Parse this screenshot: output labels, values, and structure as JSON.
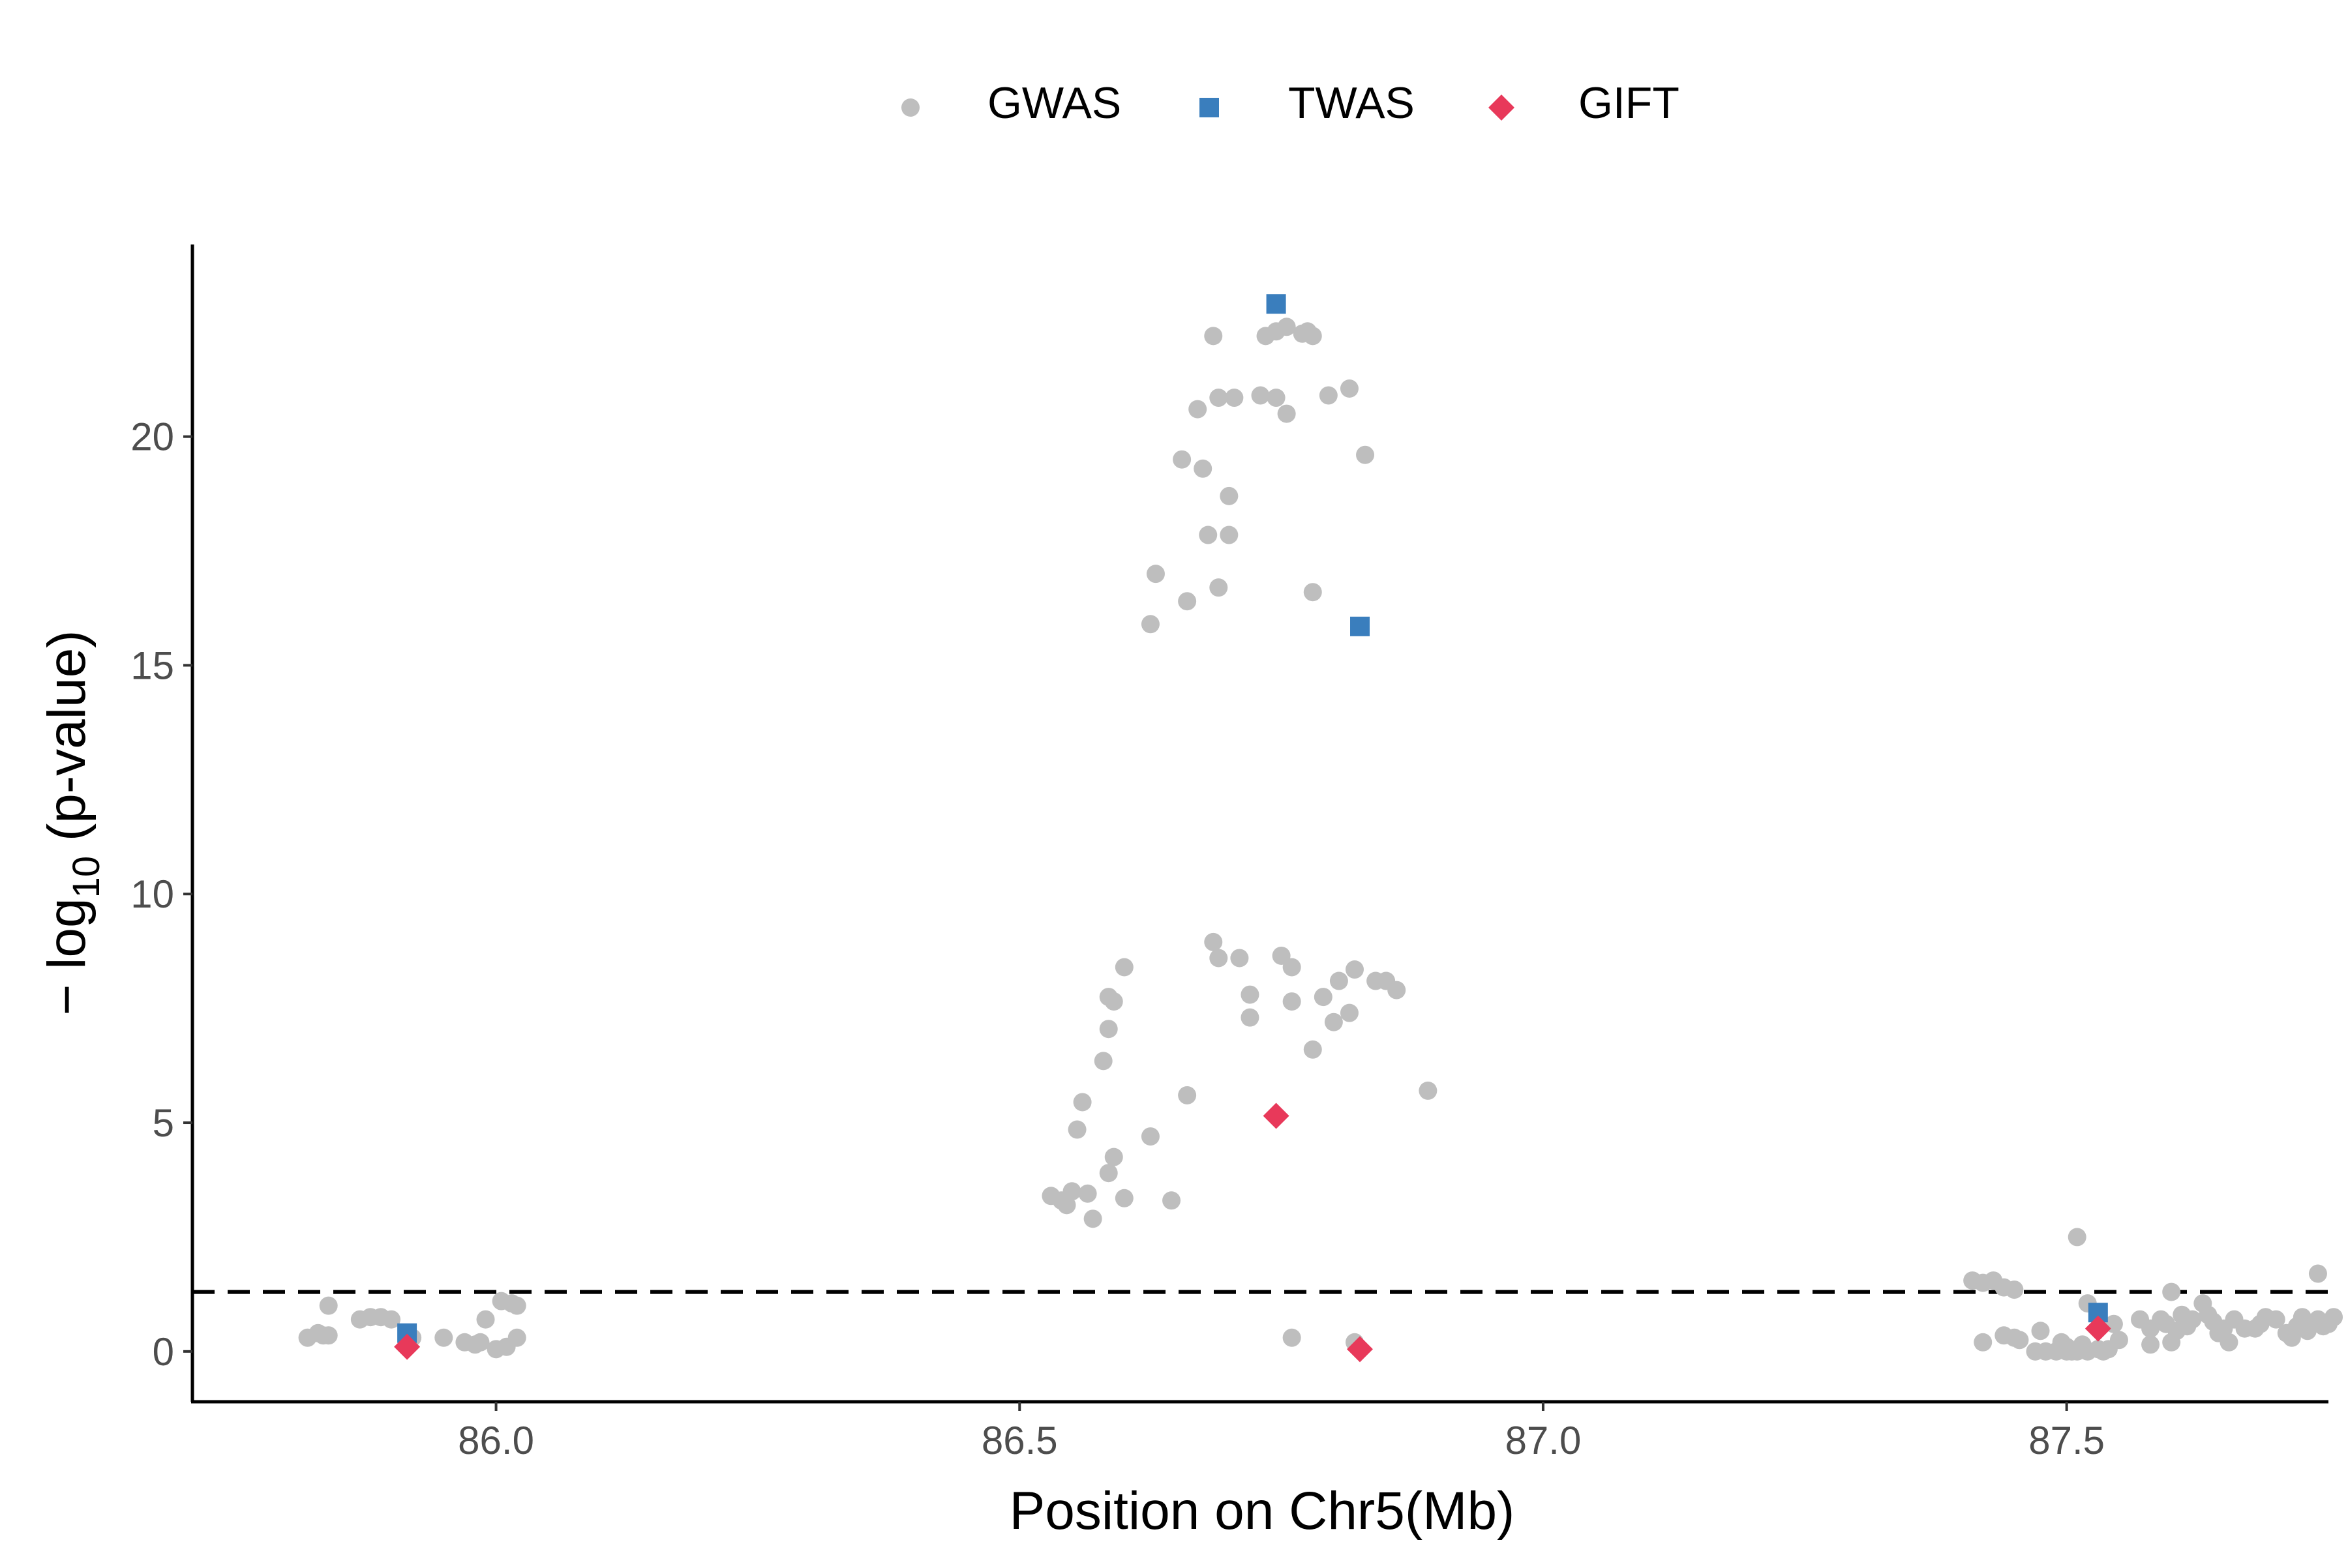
{
  "chart_data": {
    "type": "scatter",
    "title": "",
    "xlabel": "Position on Chr5(Mb)",
    "ylabel_prefix": "− log",
    "ylabel_subscript": "10",
    "ylabel_suffix": " (p-value)",
    "xlim": [
      85.71,
      87.75
    ],
    "ylim": [
      -1.1,
      24.2
    ],
    "x_ticks": [
      86.0,
      86.5,
      87.0,
      87.5
    ],
    "x_tick_labels": [
      "86.0",
      "86.5",
      "87.0",
      "87.5"
    ],
    "y_ticks": [
      0,
      5,
      10,
      15,
      20
    ],
    "y_tick_labels": [
      "0",
      "5",
      "10",
      "15",
      "20"
    ],
    "grid": false,
    "legend_position": "top-center",
    "threshold_line": {
      "y": 1.3,
      "style": "dashed",
      "color": "#000000"
    },
    "series": [
      {
        "name": "GWAS",
        "marker": "circle",
        "color": "#BEBEBE",
        "points": [
          [
            85.82,
            0.3
          ],
          [
            85.83,
            0.4
          ],
          [
            85.835,
            0.35
          ],
          [
            85.84,
            0.35
          ],
          [
            85.84,
            1.0
          ],
          [
            85.87,
            0.7
          ],
          [
            85.88,
            0.75
          ],
          [
            85.89,
            0.75
          ],
          [
            85.9,
            0.7
          ],
          [
            85.92,
            0.3
          ],
          [
            85.95,
            0.3
          ],
          [
            85.97,
            0.2
          ],
          [
            85.98,
            0.15
          ],
          [
            85.985,
            0.2
          ],
          [
            85.99,
            0.7
          ],
          [
            86.0,
            0.05
          ],
          [
            86.01,
            0.1
          ],
          [
            86.005,
            1.1
          ],
          [
            86.015,
            1.05
          ],
          [
            86.02,
            1.0
          ],
          [
            86.02,
            0.3
          ],
          [
            86.53,
            3.4
          ],
          [
            86.54,
            3.3
          ],
          [
            86.545,
            3.2
          ],
          [
            86.55,
            3.5
          ],
          [
            86.565,
            3.45
          ],
          [
            86.57,
            2.9
          ],
          [
            86.585,
            3.9
          ],
          [
            86.59,
            4.25
          ],
          [
            86.6,
            3.35
          ],
          [
            86.555,
            4.85
          ],
          [
            86.56,
            5.45
          ],
          [
            86.58,
            6.35
          ],
          [
            86.585,
            7.05
          ],
          [
            86.59,
            7.65
          ],
          [
            86.585,
            7.75
          ],
          [
            86.6,
            8.4
          ],
          [
            86.625,
            4.7
          ],
          [
            86.645,
            3.3
          ],
          [
            86.66,
            5.6
          ],
          [
            86.685,
            8.95
          ],
          [
            86.69,
            8.6
          ],
          [
            86.71,
            8.6
          ],
          [
            86.72,
            7.8
          ],
          [
            86.72,
            7.3
          ],
          [
            86.75,
            8.65
          ],
          [
            86.76,
            8.4
          ],
          [
            86.76,
            7.65
          ],
          [
            86.78,
            6.6
          ],
          [
            86.79,
            7.75
          ],
          [
            86.8,
            7.2
          ],
          [
            86.805,
            8.1
          ],
          [
            86.82,
            8.35
          ],
          [
            86.815,
            7.4
          ],
          [
            86.84,
            8.1
          ],
          [
            86.85,
            8.1
          ],
          [
            86.86,
            7.9
          ],
          [
            86.89,
            5.7
          ],
          [
            86.625,
            15.9
          ],
          [
            86.63,
            17.0
          ],
          [
            86.655,
            19.5
          ],
          [
            86.66,
            16.4
          ],
          [
            86.675,
            19.3
          ],
          [
            86.69,
            16.7
          ],
          [
            86.68,
            17.85
          ],
          [
            86.7,
            17.85
          ],
          [
            86.7,
            18.7
          ],
          [
            86.67,
            20.6
          ],
          [
            86.69,
            20.85
          ],
          [
            86.705,
            20.85
          ],
          [
            86.745,
            20.85
          ],
          [
            86.73,
            20.9
          ],
          [
            86.755,
            20.5
          ],
          [
            86.78,
            16.6
          ],
          [
            86.795,
            20.9
          ],
          [
            86.815,
            21.05
          ],
          [
            86.83,
            19.6
          ],
          [
            86.685,
            22.2
          ],
          [
            86.735,
            22.2
          ],
          [
            86.745,
            22.3
          ],
          [
            86.755,
            22.4
          ],
          [
            86.77,
            22.25
          ],
          [
            86.775,
            22.3
          ],
          [
            86.78,
            22.2
          ],
          [
            86.76,
            0.3
          ],
          [
            86.82,
            0.2
          ],
          [
            87.41,
            1.55
          ],
          [
            87.42,
            1.5
          ],
          [
            87.43,
            1.55
          ],
          [
            87.44,
            1.4
          ],
          [
            87.45,
            1.35
          ],
          [
            87.42,
            0.2
          ],
          [
            87.44,
            0.35
          ],
          [
            87.45,
            0.3
          ],
          [
            87.455,
            0.25
          ],
          [
            87.47,
            0.0
          ],
          [
            87.475,
            0.45
          ],
          [
            87.48,
            0.0
          ],
          [
            87.49,
            0.0
          ],
          [
            87.5,
            0.0
          ],
          [
            87.505,
            0.0
          ],
          [
            87.51,
            0.0
          ],
          [
            87.52,
            0.0
          ],
          [
            87.535,
            0.0
          ],
          [
            87.54,
            0.05
          ],
          [
            87.495,
            0.2
          ],
          [
            87.5,
            0.1
          ],
          [
            87.515,
            0.15
          ],
          [
            87.52,
            1.05
          ],
          [
            87.53,
            0.05
          ],
          [
            87.55,
            0.25
          ],
          [
            87.53,
            0.8
          ],
          [
            87.51,
            2.5
          ],
          [
            87.545,
            0.6
          ],
          [
            87.57,
            0.7
          ],
          [
            87.58,
            0.5
          ],
          [
            87.59,
            0.7
          ],
          [
            87.595,
            0.6
          ],
          [
            87.6,
            1.3
          ],
          [
            87.605,
            0.45
          ],
          [
            87.61,
            0.8
          ],
          [
            87.615,
            0.55
          ],
          [
            87.62,
            0.7
          ],
          [
            87.63,
            1.05
          ],
          [
            87.635,
            0.8
          ],
          [
            87.64,
            0.65
          ],
          [
            87.645,
            0.4
          ],
          [
            87.65,
            0.5
          ],
          [
            87.655,
            0.2
          ],
          [
            87.66,
            0.7
          ],
          [
            87.67,
            0.5
          ],
          [
            87.68,
            0.5
          ],
          [
            87.685,
            0.6
          ],
          [
            87.69,
            0.75
          ],
          [
            87.7,
            0.7
          ],
          [
            87.71,
            0.4
          ],
          [
            87.715,
            0.3
          ],
          [
            87.72,
            0.55
          ],
          [
            87.725,
            0.75
          ],
          [
            87.73,
            0.45
          ],
          [
            87.735,
            0.6
          ],
          [
            87.74,
            0.7
          ],
          [
            87.74,
            1.7
          ],
          [
            87.745,
            0.55
          ],
          [
            87.75,
            0.6
          ],
          [
            87.755,
            0.75
          ],
          [
            87.6,
            0.2
          ],
          [
            87.58,
            0.15
          ]
        ]
      },
      {
        "name": "TWAS",
        "marker": "square",
        "color": "#3A7EBD",
        "points": [
          [
            85.915,
            0.4
          ],
          [
            86.745,
            22.9
          ],
          [
            86.825,
            15.85
          ],
          [
            87.53,
            0.85
          ]
        ]
      },
      {
        "name": "GIFT",
        "marker": "diamond",
        "color": "#E8395A",
        "points": [
          [
            85.915,
            0.1
          ],
          [
            86.745,
            5.15
          ],
          [
            86.825,
            0.05
          ],
          [
            87.53,
            0.5
          ]
        ]
      }
    ]
  }
}
